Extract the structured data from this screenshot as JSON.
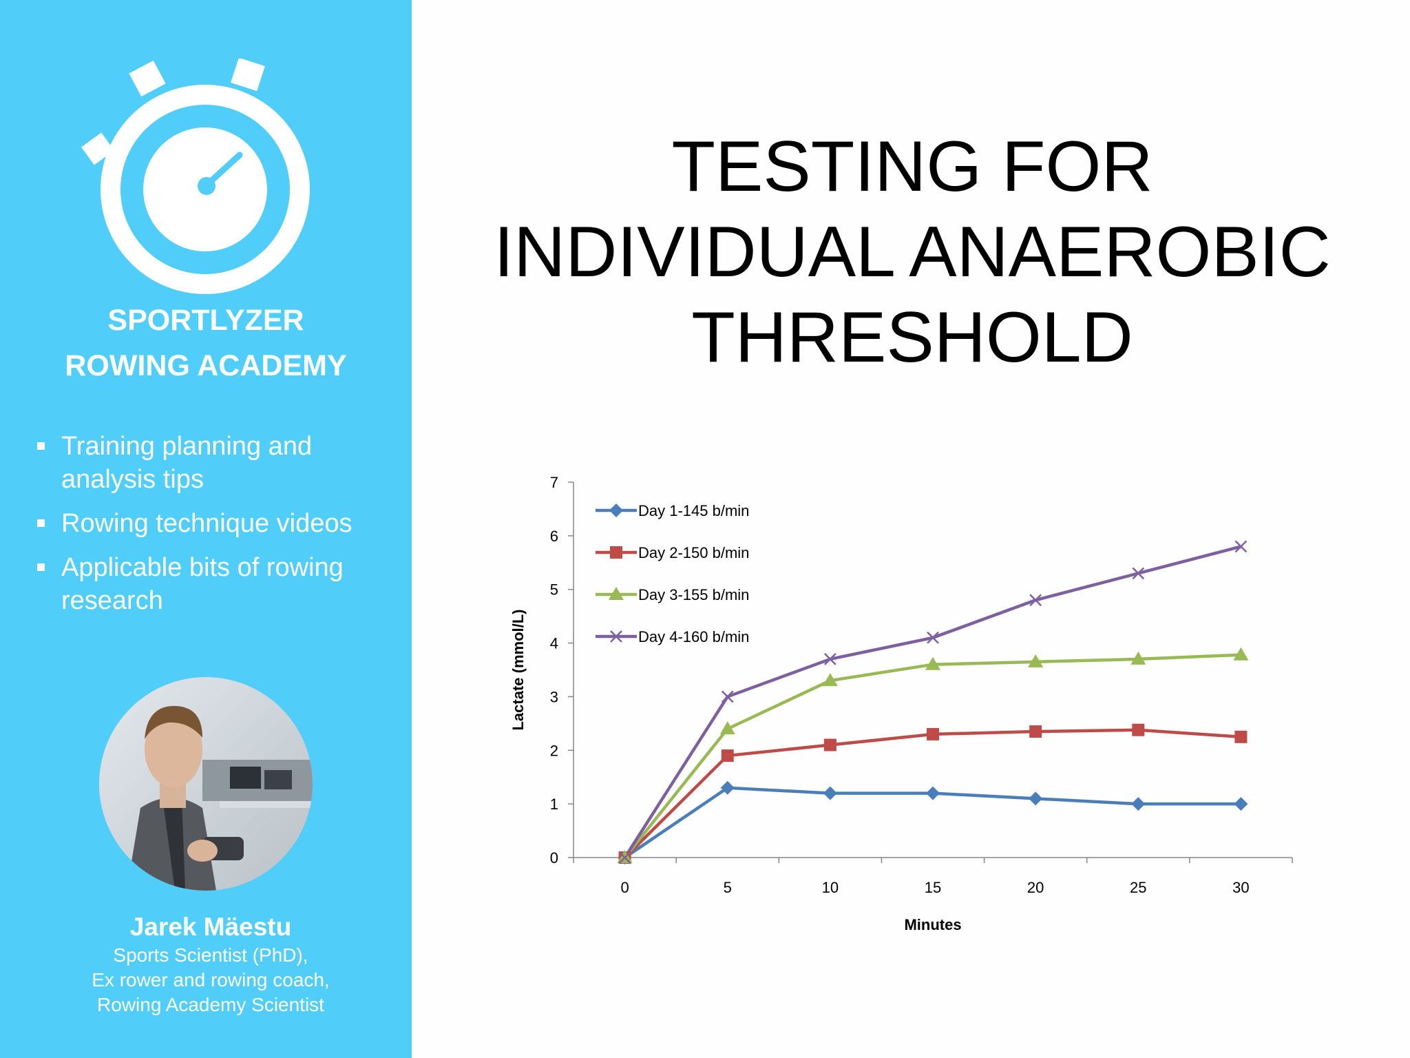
{
  "sidebar": {
    "brand_line1": "SPORTLYZER",
    "brand_line2": "ROWING ACADEMY",
    "features": [
      "Training planning and analysis tips",
      "Rowing technique videos",
      "Applicable bits of rowing research"
    ],
    "author": {
      "name": "Jarek Mäestu",
      "role_line1": "Sports Scientist (PhD),",
      "role_line2": "Ex rower and rowing coach,",
      "role_line3": "Rowing Academy Scientist"
    },
    "logo_icon": "stopwatch-icon",
    "colors": {
      "background": "#51cdfa",
      "text": "#ffffff"
    }
  },
  "slide": {
    "title_lines": [
      "TESTING FOR",
      "INDIVIDUAL ANAEROBIC",
      "THRESHOLD"
    ]
  },
  "chart_data": {
    "type": "line",
    "title": "",
    "xlabel": "Minutes",
    "ylabel": "Lactate (mmol/L)",
    "x": [
      0,
      5,
      10,
      15,
      20,
      25,
      30
    ],
    "xlim": [
      -2.5,
      32.5
    ],
    "ylim": [
      0,
      7
    ],
    "yticks": [
      0,
      1,
      2,
      3,
      4,
      5,
      6,
      7
    ],
    "grid": false,
    "legend_position": "top-left",
    "series": [
      {
        "name": "Day 1-145 b/min",
        "color": "#4a7ebb",
        "marker": "diamond",
        "values": [
          0,
          1.3,
          1.2,
          1.2,
          1.1,
          1.0,
          1.0
        ]
      },
      {
        "name": "Day 2-150 b/min",
        "color": "#be4b48",
        "marker": "square",
        "values": [
          0,
          1.9,
          2.1,
          2.3,
          2.35,
          2.38,
          2.25
        ]
      },
      {
        "name": "Day 3-155 b/min",
        "color": "#98b954",
        "marker": "triangle",
        "values": [
          0,
          2.4,
          3.3,
          3.6,
          3.65,
          3.7,
          3.78
        ]
      },
      {
        "name": "Day 4-160 b/min",
        "color": "#7d60a0",
        "marker": "x",
        "values": [
          0,
          3.0,
          3.7,
          4.1,
          4.8,
          5.3,
          5.8
        ]
      }
    ]
  }
}
